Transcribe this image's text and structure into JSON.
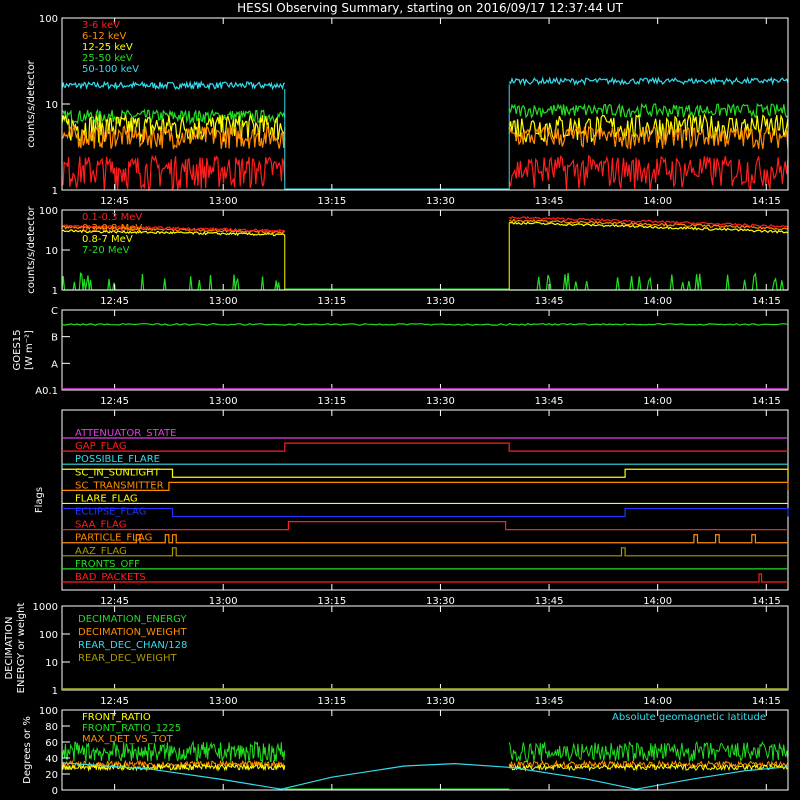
{
  "title": "HESSI Observing Summary, starting on 2016/09/17 12:37:44 UT",
  "time_axis": {
    "start": "12:37:44",
    "end": "14:18:00",
    "tick_labels": [
      "12:45",
      "13:00",
      "13:15",
      "13:30",
      "13:45",
      "14:00",
      "14:15"
    ],
    "tick_minutes": [
      765,
      780,
      795,
      810,
      825,
      840,
      855
    ],
    "gap": {
      "from": "13:08:30",
      "to": "13:39:30"
    }
  },
  "colors": {
    "red": "#ff1e1e",
    "orange": "#ff8c00",
    "yellow": "#ffff00",
    "green": "#22dd22",
    "cyan": "#33ddee",
    "magenta": "#e040e0",
    "blue": "#2233ff",
    "olive": "#aa9900",
    "white": "#ffffff"
  },
  "chart_data": [
    {
      "type": "line",
      "name": "count-rate-low",
      "ylabel": "counts/s/detector",
      "yscale": "log",
      "ylim": [
        1,
        100
      ],
      "yticks": [
        "1",
        "10",
        "100"
      ],
      "legend_position": "top-left",
      "series": [
        {
          "name": "3-6 keV",
          "color": "red",
          "before": [
            1.0,
            2.5
          ],
          "after": [
            1.0,
            2.5
          ]
        },
        {
          "name": "6-12 keV",
          "color": "orange",
          "before": [
            3.0,
            5.5
          ],
          "after": [
            3.0,
            5.5
          ]
        },
        {
          "name": "12-25 keV",
          "color": "yellow",
          "before": [
            3.5,
            7.5
          ],
          "after": [
            3.5,
            7.5
          ]
        },
        {
          "name": "25-50 keV",
          "color": "green",
          "before": [
            6.0,
            8.5
          ],
          "after": [
            7.0,
            10.0
          ]
        },
        {
          "name": "50-100 keV",
          "color": "cyan",
          "before": [
            15.0,
            18.0
          ],
          "after": [
            17.0,
            20.0
          ]
        }
      ]
    },
    {
      "type": "line",
      "name": "count-rate-high",
      "ylabel": "counts/s/detector",
      "yscale": "log",
      "ylim": [
        1,
        100
      ],
      "yticks": [
        "1",
        "10",
        "100"
      ],
      "legend_position": "top-left",
      "series": [
        {
          "name": "0.1-0.3 MeV",
          "color": "red",
          "before": [
            40,
            30
          ],
          "after": [
            65,
            38
          ]
        },
        {
          "name": "0.3-0.8 MeV",
          "color": "orange",
          "before": [
            37,
            28
          ],
          "after": [
            55,
            34
          ]
        },
        {
          "name": "0.8-7 MeV",
          "color": "yellow",
          "before": [
            30,
            24
          ],
          "after": [
            48,
            28
          ]
        },
        {
          "name": "7-20 MeV",
          "color": "green",
          "before": [
            1.0,
            1.0
          ],
          "after": [
            1.0,
            1.0
          ]
        }
      ]
    },
    {
      "type": "line",
      "name": "goes",
      "ylabel": "GOES15",
      "ylabel2": "[W m⁻²]",
      "yticks": [
        "A0.1",
        "A",
        "B",
        "C"
      ],
      "series": [
        {
          "name": "GOES15",
          "color": "green",
          "level": "B",
          "level_value": 0.82
        }
      ]
    },
    {
      "type": "line",
      "name": "flags",
      "ylabel": "Flags",
      "series": [
        {
          "name": "ATTENUATOR_STATE",
          "color": "magenta",
          "state_changes": []
        },
        {
          "name": "GAP_FLAG",
          "color": "red",
          "state_changes": [
            {
              "from": "13:08:30",
              "to": "13:39:30"
            }
          ]
        },
        {
          "name": "POSSIBLE_FLARE",
          "color": "cyan",
          "state_changes": []
        },
        {
          "name": "SC_IN_SUNLIGHT",
          "color": "yellow",
          "state_changes": [
            {
              "from": "12:37:44",
              "to": "12:53:00"
            },
            {
              "from": "13:55:30",
              "to": "14:18:00"
            }
          ]
        },
        {
          "name": "SC_TRANSMITTER",
          "color": "orange",
          "state_changes": [
            {
              "from": "12:52:30",
              "to": "14:18:00"
            }
          ]
        },
        {
          "name": "FLARE_FLAG",
          "color": "yellow",
          "state_changes": []
        },
        {
          "name": "ECLIPSE_FLAG",
          "color": "blue",
          "state_changes": [
            {
              "from": "12:37:44",
              "to": "12:53:00"
            },
            {
              "from": "13:55:30",
              "to": "14:18:00"
            }
          ]
        },
        {
          "name": "SAA_FLAG",
          "color": "red",
          "state_changes": [
            {
              "from": "13:09:00",
              "to": "13:39:00"
            }
          ]
        },
        {
          "name": "PARTICLE_FLAG",
          "color": "orange",
          "state_changes": [
            {
              "from": "12:48:00",
              "to": "12:48:30"
            },
            {
              "from": "12:52:00",
              "to": "12:52:30"
            },
            {
              "from": "12:53:00",
              "to": "12:53:30"
            },
            {
              "from": "14:05:00",
              "to": "14:05:30"
            },
            {
              "from": "14:08:00",
              "to": "14:08:30"
            },
            {
              "from": "14:13:00",
              "to": "14:13:30"
            }
          ]
        },
        {
          "name": "AAZ_FLAG",
          "color": "olive",
          "state_changes": [
            {
              "from": "12:53:00",
              "to": "12:53:30"
            },
            {
              "from": "13:55:00",
              "to": "13:55:30"
            }
          ]
        },
        {
          "name": "FRONTS_OFF",
          "color": "green",
          "state_changes": []
        },
        {
          "name": "BAD_PACKETS",
          "color": "red",
          "state_changes": [
            {
              "from": "14:14:00",
              "to": "14:14:20"
            }
          ]
        }
      ]
    },
    {
      "type": "line",
      "name": "decimation",
      "ylabel": "DECIMATION",
      "ylabel2": "ENERGY or weight",
      "yscale": "log",
      "ylim": [
        1,
        1000
      ],
      "yticks": [
        "1",
        "10",
        "100",
        "1000"
      ],
      "legend_position": "top-left",
      "series": [
        {
          "name": "DECIMATION_ENERGY",
          "color": "green",
          "value": 1
        },
        {
          "name": "DECIMATION_WEIGHT",
          "color": "orange",
          "value": 1
        },
        {
          "name": "REAR_DEC_CHAN/128",
          "color": "cyan",
          "value": 1
        },
        {
          "name": "REAR_DEC_WEIGHT",
          "color": "olive",
          "value": 1
        }
      ]
    },
    {
      "type": "line",
      "name": "ratios",
      "ylabel": "Degrees or %",
      "ylim": [
        0,
        100
      ],
      "yticks": [
        "0",
        "20",
        "40",
        "60",
        "80",
        "100"
      ],
      "legend_position": "top-left",
      "annotation": "Absolute geomagnetic latitude",
      "series": [
        {
          "name": "FRONT_RATIO",
          "color": "yellow",
          "level": [
            25,
            32
          ]
        },
        {
          "name": "FRONT_RATIO_1225",
          "color": "green",
          "level": [
            35,
            60
          ]
        },
        {
          "name": "MAX_DET_VS_TOT",
          "color": "orange",
          "level": [
            28,
            36
          ]
        },
        {
          "name": "Absolute geomagnetic latitude",
          "color": "cyan",
          "points": [
            [
              "12:37:44",
              34
            ],
            [
              "12:50:00",
              26
            ],
            [
              "13:00:00",
              13
            ],
            [
              "13:08:00",
              1
            ],
            [
              "13:15:00",
              16
            ],
            [
              "13:25:00",
              30
            ],
            [
              "13:32:00",
              33
            ],
            [
              "13:40:00",
              28
            ],
            [
              "13:50:00",
              14
            ],
            [
              "13:57:00",
              1
            ],
            [
              "14:05:00",
              14
            ],
            [
              "14:12:00",
              24
            ],
            [
              "14:18:00",
              29
            ]
          ]
        }
      ]
    }
  ]
}
